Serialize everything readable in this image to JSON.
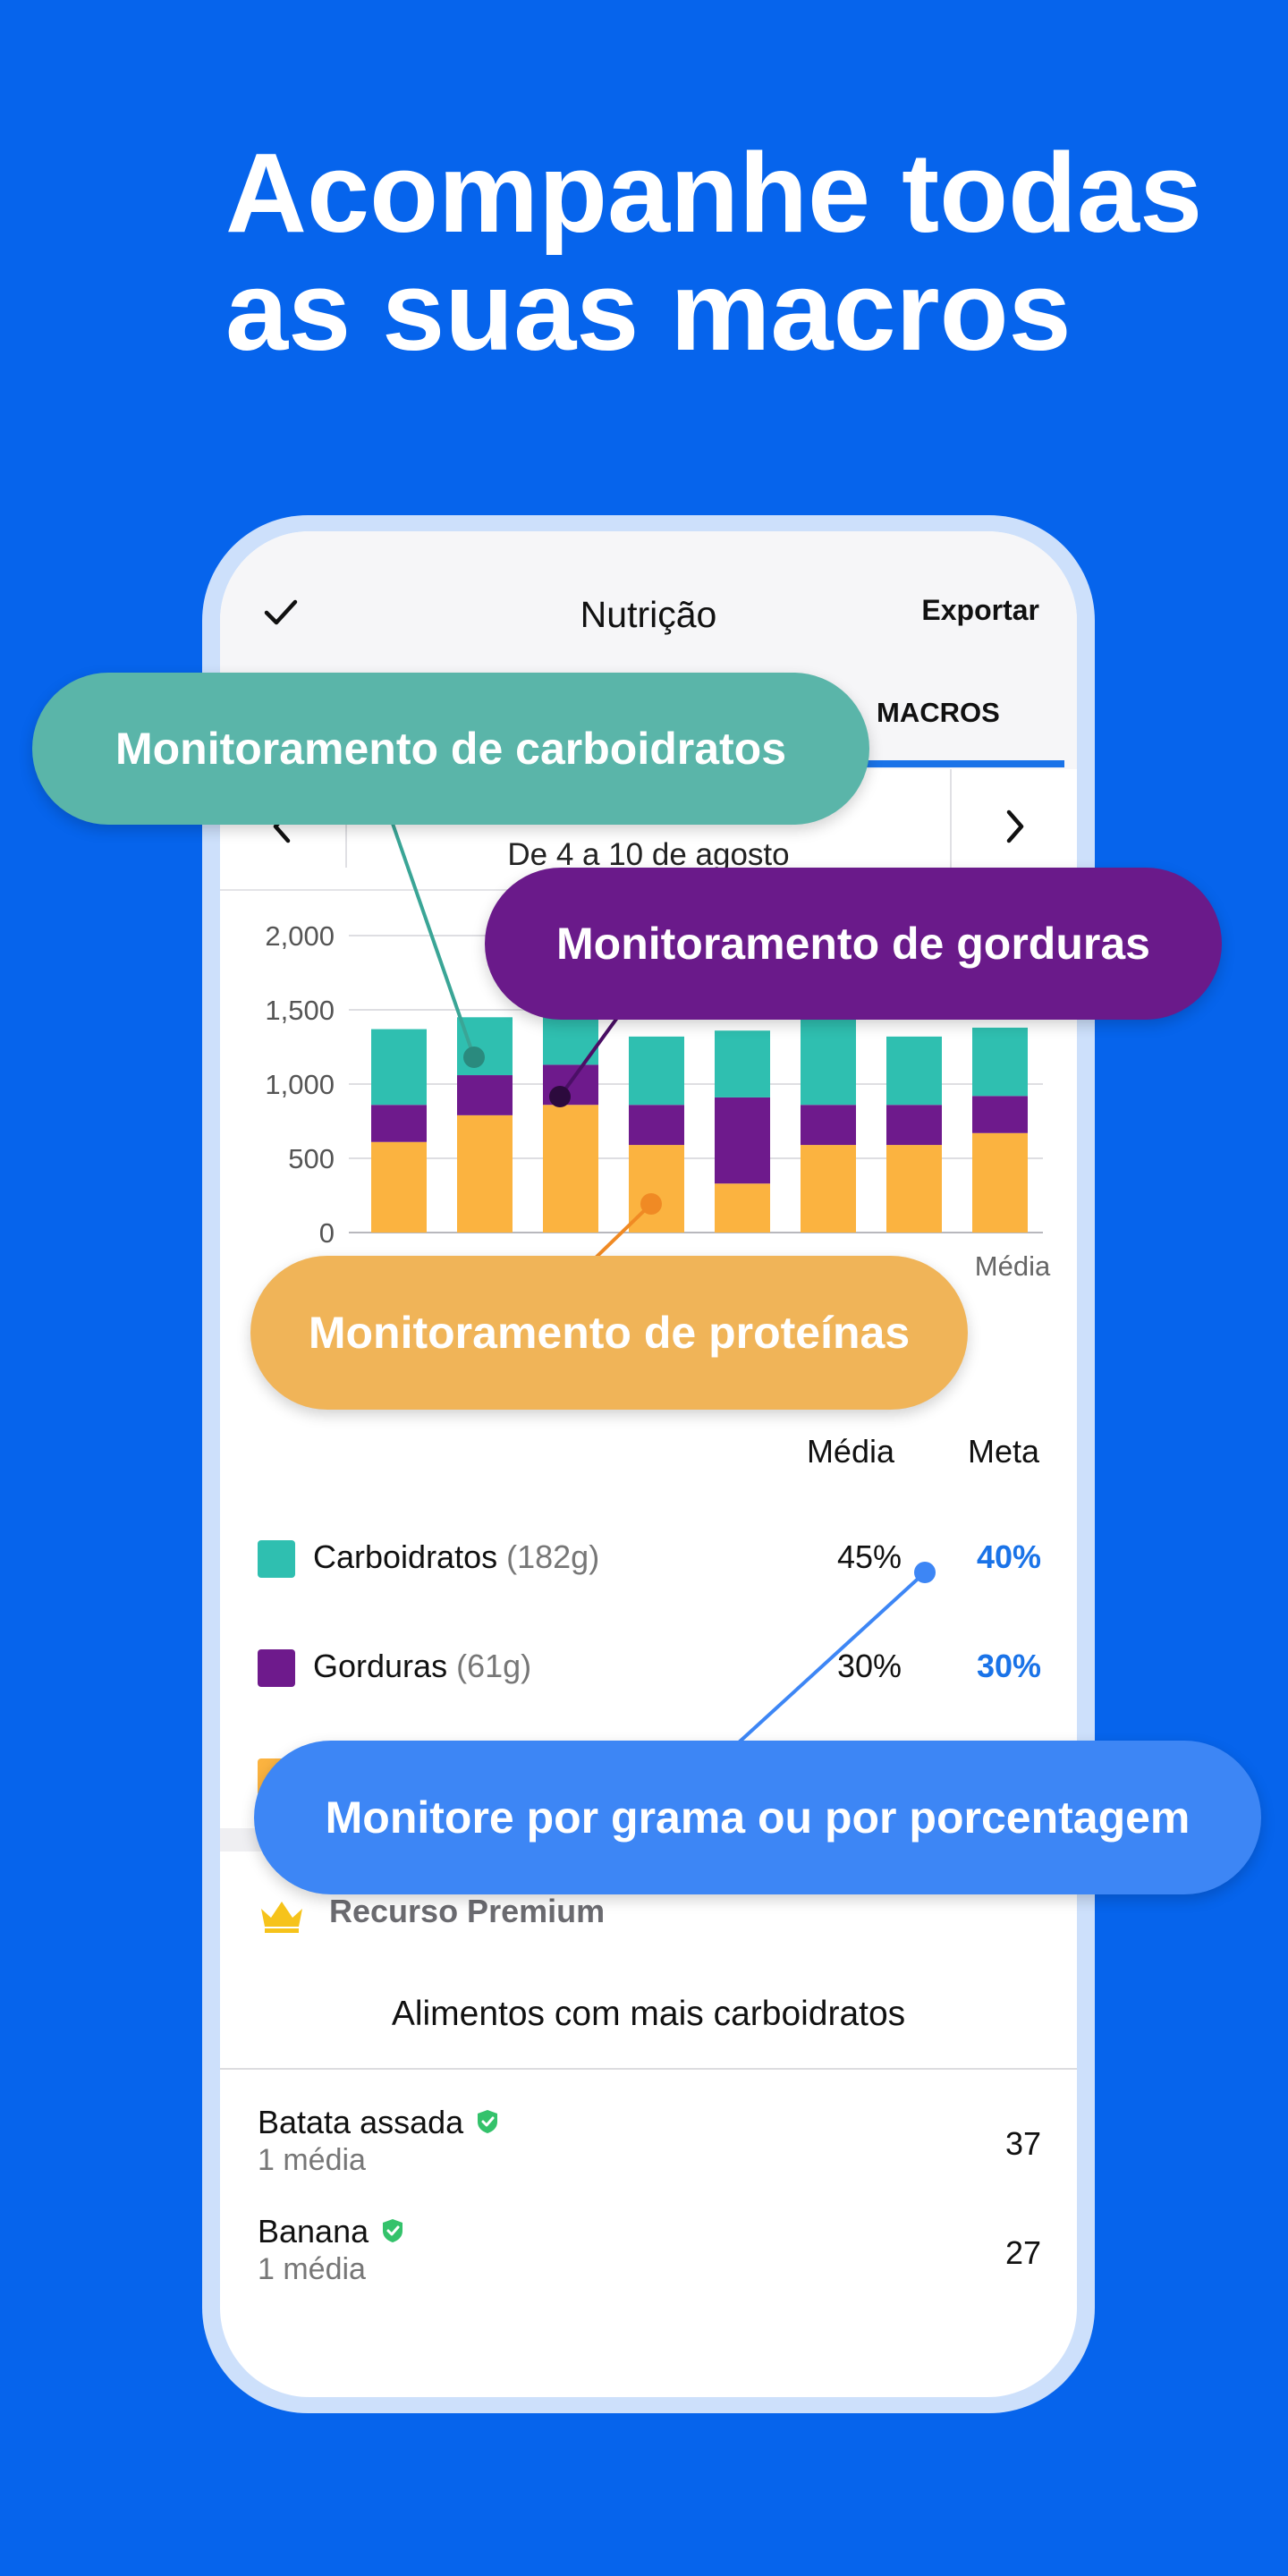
{
  "headline": "Acompanhe todas as suas macros",
  "screen": {
    "title": "Nutrição",
    "export_label": "Exportar",
    "tab_active": "MACROS",
    "date_range": "De 4 a 10 de agosto"
  },
  "chart_data": {
    "type": "bar",
    "stacked": true,
    "categories": [
      "",
      "",
      "",
      "",
      "",
      "",
      "",
      "Média"
    ],
    "series": [
      {
        "name": "Proteínas",
        "color": "#fbb340",
        "values": [
          610,
          790,
          860,
          590,
          330,
          590,
          590,
          670
        ]
      },
      {
        "name": "Gorduras",
        "color": "#6e1a8c",
        "values": [
          250,
          270,
          270,
          270,
          580,
          270,
          270,
          250
        ]
      },
      {
        "name": "Carboidratos",
        "color": "#2fbfb0",
        "values": [
          510,
          390,
          410,
          460,
          450,
          600,
          460,
          460
        ]
      }
    ],
    "y_ticks": [
      "0",
      "500",
      "1,000",
      "1,500",
      "2,000"
    ],
    "ylim": [
      0,
      2000
    ],
    "grid": true
  },
  "macros_table": {
    "col_avg": "Média",
    "col_goal": "Meta",
    "rows": [
      {
        "label": "Carboidratos",
        "grams": "(182g)",
        "avg": "45%",
        "goal": "40%",
        "color": "#2fbfb0"
      },
      {
        "label": "Gorduras",
        "grams": "(61g)",
        "avg": "30%",
        "goal": "30%",
        "color": "#6e1a8c"
      },
      {
        "label": "",
        "grams": "",
        "avg": "",
        "goal": "",
        "color": "#fbb340"
      }
    ]
  },
  "premium": {
    "label": "Recurso Premium",
    "foods_title": "Alimentos com mais carboidratos",
    "foods": [
      {
        "name": "Batata assada",
        "serving": "1 média",
        "value": "37"
      },
      {
        "name": "Banana",
        "serving": "1 média",
        "value": "27"
      }
    ]
  },
  "callouts": {
    "carbs": "Monitoramento de carboidratos",
    "fats": "Monitoramento de gorduras",
    "proteins": "Monitoramento de proteínas",
    "grams": "Monitore por grama ou por porcentagem"
  },
  "colors": {
    "background": "#0664ec",
    "accent": "#1a73e8",
    "verified": "#34c26b",
    "crown": "#f6c31b"
  }
}
